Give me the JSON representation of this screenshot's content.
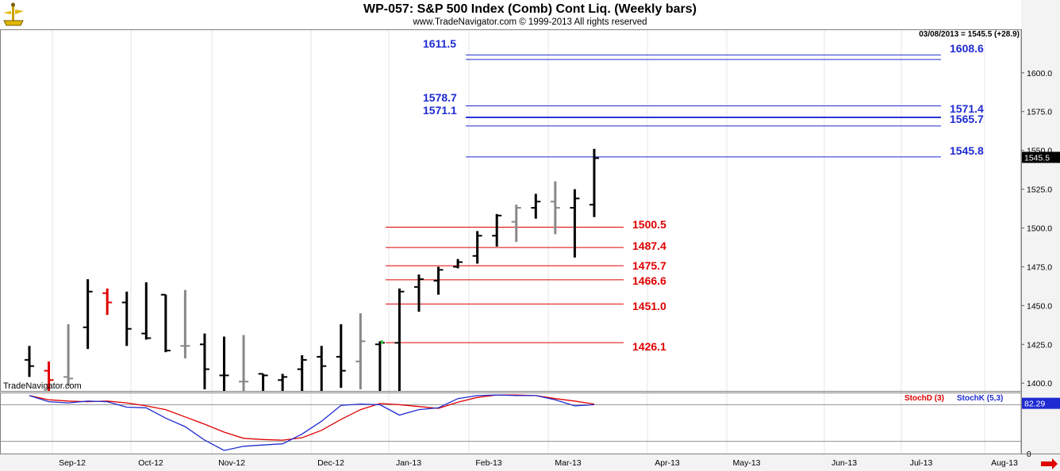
{
  "title": "WP-057:  S&P 500 Index (Comb) Cont Liq.  (Weekly bars)",
  "subtitle": "www.TradeNavigator.com © 1999-2013 All rights reserved",
  "readout": "03/08/2013 = 1545.5 (+28.9)",
  "watermark": "TradeNavigator.com",
  "last_price_label": "1545.5",
  "colors": {
    "up": "#000000",
    "neutral": "#888888",
    "down": "#e00000",
    "blue_level": "#1f2bd1",
    "red_level": "#e00000",
    "stoch_d": "#e00000",
    "stoch_k": "#1f2bd1"
  },
  "chart_data": [
    {
      "type": "ohlc",
      "ylim": [
        1395,
        1628
      ],
      "y_ticks": [
        1400.0,
        1425.0,
        1450.0,
        1475.0,
        1500.0,
        1525.0,
        1550.0,
        1575.0,
        1600.0
      ],
      "x_tick_labels": [
        "Sep-12",
        "Oct-12",
        "Nov-12",
        "Dec-12",
        "Jan-13",
        "Feb-13",
        "Mar-13",
        "Apr-13",
        "May-13",
        "Jun-13",
        "Jul-13",
        "Aug-13"
      ],
      "bars": [
        {
          "o": 1415,
          "h": 1424,
          "l": 1404,
          "c": 1411,
          "color": "up"
        },
        {
          "o": 1408,
          "h": 1414,
          "l": 1394,
          "c": 1402,
          "color": "down"
        },
        {
          "o": 1404,
          "h": 1438,
          "l": 1398,
          "c": 1403,
          "color": "neutral"
        },
        {
          "o": 1436,
          "h": 1467,
          "l": 1422,
          "c": 1459,
          "color": "up"
        },
        {
          "o": 1458,
          "h": 1461,
          "l": 1444,
          "c": 1452,
          "color": "down"
        },
        {
          "o": 1452,
          "h": 1459,
          "l": 1424,
          "c": 1435,
          "color": "up"
        },
        {
          "o": 1432,
          "h": 1465,
          "l": 1428,
          "c": 1429,
          "color": "up"
        },
        {
          "o": 1457,
          "h": 1457,
          "l": 1420,
          "c": 1421,
          "color": "up"
        },
        {
          "o": 1424,
          "h": 1460,
          "l": 1416,
          "c": 1424,
          "color": "neutral"
        },
        {
          "o": 1425,
          "h": 1432,
          "l": 1396,
          "c": 1409,
          "color": "up"
        },
        {
          "o": 1405,
          "h": 1430,
          "l": 1394,
          "c": 1405,
          "color": "up"
        },
        {
          "o": 1401,
          "h": 1431,
          "l": 1394,
          "c": 1401,
          "color": "neutral"
        },
        {
          "o": 1406,
          "h": 1406,
          "l": 1394,
          "c": 1405,
          "color": "up"
        },
        {
          "o": 1402,
          "h": 1406,
          "l": 1394,
          "c": 1404,
          "color": "up"
        },
        {
          "o": 1409,
          "h": 1418,
          "l": 1394,
          "c": 1415,
          "color": "up"
        },
        {
          "o": 1417,
          "h": 1424,
          "l": 1395,
          "c": 1411,
          "color": "up"
        },
        {
          "o": 1417,
          "h": 1438,
          "l": 1397,
          "c": 1408,
          "color": "up"
        },
        {
          "o": 1414,
          "h": 1445,
          "l": 1396,
          "c": 1427,
          "color": "neutral"
        },
        {
          "o": 1425,
          "h": 1427,
          "l": 1395,
          "c": 1426,
          "color": "up"
        },
        {
          "o": 1426,
          "h": 1461,
          "l": 1395,
          "c": 1459,
          "color": "up"
        },
        {
          "o": 1462,
          "h": 1470,
          "l": 1446,
          "c": 1467,
          "color": "up"
        },
        {
          "o": 1466,
          "h": 1475,
          "l": 1457,
          "c": 1473,
          "color": "up"
        },
        {
          "o": 1475,
          "h": 1480,
          "l": 1474,
          "c": 1478,
          "color": "up"
        },
        {
          "o": 1482,
          "h": 1498,
          "l": 1477,
          "c": 1495,
          "color": "up"
        },
        {
          "o": 1495,
          "h": 1509,
          "l": 1488,
          "c": 1508,
          "color": "up"
        },
        {
          "o": 1504,
          "h": 1515,
          "l": 1491,
          "c": 1513,
          "color": "neutral"
        },
        {
          "o": 1513,
          "h": 1522,
          "l": 1506,
          "c": 1517,
          "color": "up"
        },
        {
          "o": 1517,
          "h": 1530,
          "l": 1496,
          "c": 1513,
          "color": "neutral"
        },
        {
          "o": 1513,
          "h": 1525,
          "l": 1481,
          "c": 1519,
          "color": "up"
        },
        {
          "o": 1515,
          "h": 1551,
          "l": 1507,
          "c": 1545,
          "color": "up"
        }
      ],
      "levels": [
        {
          "label": "1611.5",
          "value": 1611.5,
          "color": "blue_level",
          "label_side": "left"
        },
        {
          "label": "1608.6",
          "value": 1608.6,
          "color": "blue_level",
          "label_side": "right"
        },
        {
          "label": "1578.7",
          "value": 1578.7,
          "color": "blue_level",
          "label_side": "left"
        },
        {
          "label": "1571.1",
          "value": 1571.1,
          "color": "blue_level",
          "label_side": "left"
        },
        {
          "label": "1571.4",
          "value": 1571.4,
          "color": "blue_level",
          "label_side": "right"
        },
        {
          "label": "1565.7",
          "value": 1565.7,
          "color": "blue_level",
          "label_side": "right"
        },
        {
          "label": "1545.8",
          "value": 1545.8,
          "color": "blue_level",
          "label_side": "right"
        },
        {
          "label": "1500.5",
          "value": 1500.5,
          "color": "red_level",
          "label_side": "right"
        },
        {
          "label": "1487.4",
          "value": 1487.4,
          "color": "red_level",
          "label_side": "right"
        },
        {
          "label": "1475.7",
          "value": 1475.7,
          "color": "red_level",
          "label_side": "right"
        },
        {
          "label": "1466.6",
          "value": 1466.6,
          "color": "red_level",
          "label_side": "right"
        },
        {
          "label": "1451.0",
          "value": 1451.0,
          "color": "red_level",
          "label_side": "right"
        },
        {
          "label": "1426.1",
          "value": 1426.1,
          "color": "red_level",
          "label_side": "right"
        }
      ]
    },
    {
      "type": "line",
      "ylim": [
        0,
        100
      ],
      "y_tick_labels": [
        "82.29",
        "0"
      ],
      "y_tick_values": [
        82.29,
        0
      ],
      "reference_lines": [
        80,
        20
      ],
      "series": [
        {
          "name": "StochD (3)",
          "color": "stoch_d",
          "values": [
            95,
            88,
            86,
            85,
            86,
            83,
            78,
            72,
            60,
            48,
            35,
            25,
            23,
            22,
            26,
            38,
            56,
            72,
            82,
            80,
            77,
            74,
            84,
            92,
            96,
            96,
            95,
            90,
            86,
            81
          ]
        },
        {
          "name": "StochK (5,3)",
          "color": "stoch_k",
          "values": [
            95,
            85,
            83,
            86,
            85,
            76,
            75,
            58,
            44,
            22,
            5,
            12,
            14,
            16,
            32,
            53,
            79,
            81,
            80,
            63,
            72,
            75,
            90,
            95,
            96,
            95,
            95,
            88,
            78,
            80
          ]
        }
      ]
    }
  ]
}
